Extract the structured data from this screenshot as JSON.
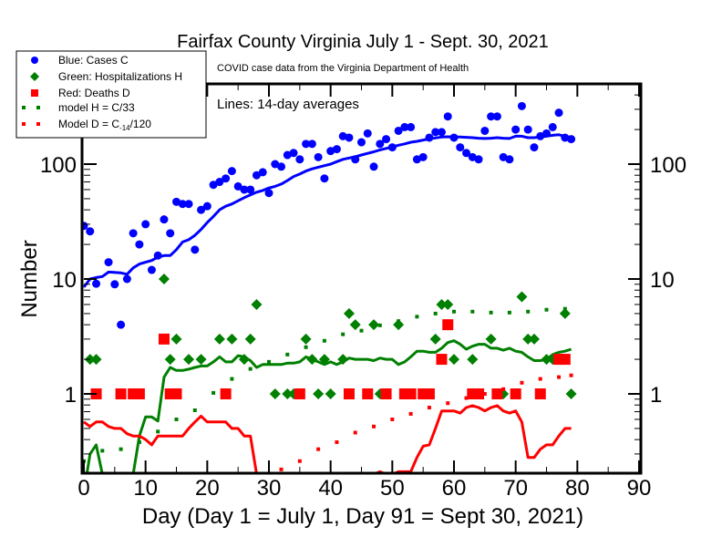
{
  "chart_data": {
    "type": "scatter",
    "title": "Fairfax County Virginia July 1 - Sept. 30, 2021",
    "subtitle": "COVID case data from the Virginia Department of Health",
    "annotation": "Lines: 14-day averages",
    "xlabel": "Day (Day 1 = July 1, Day 91 = Sept 30, 2021)",
    "ylabel": "Number",
    "xlim": [
      0,
      90
    ],
    "ylim": [
      0.2,
      500
    ],
    "yscale": "log",
    "x_ticks": [
      0,
      10,
      20,
      30,
      40,
      50,
      60,
      70,
      80,
      90
    ],
    "y_ticks": [
      1,
      10,
      100
    ],
    "y_tick_labels": [
      "1",
      "10",
      "100"
    ],
    "grid": false,
    "legend_position": "top-left",
    "legend": [
      {
        "label": "Blue: Cases C",
        "marker": "circle",
        "color": "#0000ff"
      },
      {
        "label": "Green: Hospitalizations H",
        "marker": "diamond",
        "color": "#008000"
      },
      {
        "label": "Red: Deaths D",
        "marker": "square",
        "color": "#ff0000"
      },
      {
        "label": "model H = C/33",
        "marker": "dotted",
        "color": "#008000"
      },
      {
        "label": "Model D = C",
        "label_sub": "-14",
        "label_tail": "/120",
        "marker": "dotted",
        "color": "#ff0000"
      }
    ],
    "series": [
      {
        "name": "Cases C",
        "kind": "points",
        "marker": "circle",
        "color": "#0000ff",
        "x": [
          0,
          1,
          2,
          4,
          5,
          6,
          7,
          8,
          9,
          10,
          11,
          12,
          13,
          14,
          15,
          16,
          17,
          18,
          19,
          20,
          21,
          22,
          23,
          24,
          25,
          26,
          27,
          28,
          29,
          30,
          31,
          32,
          33,
          34,
          35,
          36,
          37,
          38,
          39,
          40,
          41,
          42,
          43,
          44,
          45,
          46,
          47,
          48,
          49,
          50,
          51,
          52,
          53,
          54,
          55,
          56,
          57,
          58,
          59,
          60,
          61,
          62,
          63,
          64,
          65,
          66,
          67,
          68,
          69,
          70,
          71,
          72,
          73,
          74,
          75,
          76,
          77,
          78,
          79
        ],
        "y": [
          29,
          26,
          9.1,
          14,
          9,
          4,
          10,
          25,
          20,
          30,
          12,
          16,
          33,
          25,
          47,
          45,
          45,
          18,
          40,
          43,
          66,
          70,
          75,
          87,
          64,
          60,
          60,
          80,
          85,
          56,
          100,
          95,
          120,
          125,
          110,
          150,
          150,
          115,
          75,
          130,
          135,
          175,
          170,
          110,
          155,
          185,
          95,
          150,
          165,
          140,
          195,
          210,
          210,
          110,
          115,
          170,
          190,
          190,
          260,
          170,
          140,
          125,
          115,
          110,
          195,
          260,
          260,
          115,
          110,
          200,
          320,
          200,
          140,
          175,
          185,
          210,
          280,
          170,
          165
        ]
      },
      {
        "name": "Cases 14-day avg",
        "kind": "line",
        "color": "#0000ff",
        "x": [
          0,
          1,
          2,
          3,
          4,
          5,
          6,
          7,
          8,
          9,
          10,
          11,
          12,
          13,
          14,
          15,
          16,
          17,
          18,
          19,
          20,
          21,
          22,
          23,
          24,
          25,
          26,
          27,
          28,
          29,
          30,
          31,
          32,
          33,
          34,
          35,
          36,
          37,
          38,
          39,
          40,
          41,
          42,
          43,
          44,
          45,
          46,
          47,
          48,
          49,
          50,
          51,
          52,
          53,
          54,
          55,
          56,
          57,
          58,
          59,
          60,
          61,
          62,
          63,
          64,
          65,
          66,
          67,
          68,
          69,
          70,
          71,
          72,
          73,
          74,
          75,
          76,
          77,
          78,
          79
        ],
        "y": [
          8.5,
          10,
          10.3,
          10.5,
          11.5,
          11.4,
          11.3,
          11,
          12.5,
          13.5,
          14,
          14.5,
          15.5,
          16,
          16,
          18,
          21,
          22,
          24,
          27,
          31,
          35,
          40,
          43,
          45,
          48,
          51,
          54,
          57,
          59,
          62,
          64,
          67,
          72,
          78,
          82,
          87,
          91,
          94,
          97,
          100,
          105,
          110,
          113,
          116,
          120,
          124,
          128,
          133,
          137,
          141,
          146,
          150,
          155,
          158,
          162,
          166,
          169,
          172,
          173,
          172,
          172,
          171,
          170,
          168,
          167,
          168,
          170,
          168,
          167,
          175,
          175,
          170,
          170,
          172,
          175,
          178,
          180,
          175,
          170
        ]
      },
      {
        "name": "Hospitalizations H",
        "kind": "points",
        "marker": "diamond",
        "color": "#008000",
        "x": [
          1,
          2,
          13,
          14,
          15,
          17,
          19,
          22,
          24,
          26,
          27,
          28,
          31,
          33,
          34,
          36,
          37,
          38,
          39,
          40,
          42,
          43,
          44,
          46,
          47,
          48,
          49,
          51,
          52,
          55,
          57,
          58,
          59,
          60,
          63,
          64,
          66,
          68,
          70,
          71,
          72,
          73,
          75,
          76,
          78,
          79
        ],
        "y": [
          2,
          2,
          10,
          2,
          3,
          2,
          2,
          3,
          3,
          2,
          3,
          6,
          1,
          1,
          1,
          3,
          2,
          1,
          2,
          1,
          2,
          5,
          4,
          1,
          4,
          1,
          1,
          4,
          1,
          1,
          3,
          6,
          6,
          2,
          2,
          1,
          3,
          1,
          1,
          7,
          3,
          3,
          2,
          2,
          5,
          1
        ]
      },
      {
        "name": "Hospitalizations 14-day avg",
        "kind": "line",
        "color": "#008000",
        "x": [
          0,
          1,
          2,
          3,
          4,
          5,
          6,
          7,
          8,
          9,
          10,
          11,
          12,
          13,
          14,
          15,
          16,
          17,
          18,
          19,
          20,
          21,
          22,
          23,
          24,
          25,
          26,
          27,
          28,
          29,
          30,
          31,
          32,
          33,
          34,
          35,
          36,
          37,
          38,
          39,
          40,
          41,
          42,
          43,
          44,
          45,
          46,
          47,
          48,
          49,
          50,
          51,
          52,
          53,
          54,
          55,
          56,
          57,
          58,
          59,
          60,
          61,
          62,
          63,
          64,
          65,
          66,
          67,
          68,
          69,
          70,
          71,
          72,
          73,
          74,
          75,
          76,
          77,
          78,
          79
        ],
        "y": [
          0.14,
          0.3,
          0.36,
          0.2,
          0.1,
          0.1,
          0.1,
          0.1,
          0.2,
          0.43,
          0.63,
          0.63,
          0.58,
          1.4,
          1.7,
          1.6,
          1.6,
          1.64,
          1.7,
          1.75,
          1.75,
          1.9,
          2.1,
          1.9,
          1.9,
          2.15,
          2.1,
          1.95,
          1.7,
          1.8,
          1.8,
          1.8,
          1.8,
          1.85,
          1.85,
          1.9,
          2.1,
          2.0,
          1.9,
          1.8,
          1.9,
          1.8,
          1.9,
          2.05,
          2.0,
          2.0,
          2.0,
          1.95,
          2.05,
          2.0,
          2.0,
          1.8,
          1.9,
          2.1,
          2.35,
          2.35,
          2.3,
          2.3,
          2.5,
          2.8,
          2.9,
          2.7,
          2.45,
          2.6,
          2.7,
          2.7,
          2.5,
          2.5,
          2.4,
          2.5,
          2.35,
          2.3,
          2.1,
          1.95,
          1.95,
          2.0,
          2.2,
          2.3,
          2.35,
          2.45
        ]
      },
      {
        "name": "model H = C/33",
        "kind": "dotted",
        "color": "#008000",
        "x": [
          0,
          3,
          6,
          9,
          12,
          15,
          18,
          21,
          24,
          27,
          30,
          33,
          36,
          39,
          42,
          45,
          48,
          51,
          54,
          57,
          60,
          63,
          66,
          69,
          72,
          75,
          78
        ],
        "y": [
          0.26,
          0.32,
          0.33,
          0.38,
          0.47,
          0.6,
          0.72,
          1.02,
          1.35,
          1.65,
          1.9,
          2.2,
          2.55,
          2.9,
          3.3,
          3.55,
          3.95,
          4.3,
          4.7,
          5.0,
          5.2,
          5.2,
          5.1,
          5.1,
          5.2,
          5.4,
          5.5
        ]
      },
      {
        "name": "Deaths D",
        "kind": "points",
        "marker": "square",
        "color": "#ff0000",
        "x": [
          2,
          6,
          8,
          9,
          13,
          14,
          15,
          23,
          35,
          43,
          46,
          49,
          52,
          53,
          55,
          56,
          58,
          59,
          63,
          64,
          67,
          70,
          74,
          77,
          78
        ],
        "y": [
          1,
          1,
          1,
          1,
          3,
          1,
          1,
          1,
          1,
          1,
          1,
          1,
          1,
          1,
          1,
          1,
          2,
          4,
          1,
          1,
          1,
          1,
          1,
          2,
          2
        ]
      },
      {
        "name": "Deaths 14-day avg",
        "kind": "line",
        "color": "#ff0000",
        "x": [
          0,
          1,
          2,
          3,
          4,
          5,
          6,
          7,
          8,
          9,
          10,
          11,
          12,
          13,
          14,
          15,
          16,
          17,
          18,
          19,
          20,
          21,
          22,
          23,
          24,
          25,
          26,
          27,
          28,
          47,
          48,
          49,
          50,
          51,
          52,
          53,
          54,
          55,
          56,
          57,
          58,
          59,
          60,
          61,
          62,
          63,
          64,
          65,
          66,
          67,
          68,
          69,
          70,
          71,
          72,
          73,
          74,
          75,
          76,
          77,
          78,
          79
        ],
        "y": [
          0.57,
          0.52,
          0.57,
          0.57,
          0.52,
          0.5,
          0.5,
          0.45,
          0.43,
          0.43,
          0.4,
          0.36,
          0.43,
          0.43,
          0.43,
          0.43,
          0.43,
          0.5,
          0.57,
          0.64,
          0.57,
          0.57,
          0.57,
          0.57,
          0.5,
          0.5,
          0.43,
          0.43,
          0.2,
          0.2,
          0.21,
          0.2,
          0.2,
          0.21,
          0.21,
          0.21,
          0.28,
          0.35,
          0.36,
          0.5,
          0.71,
          0.71,
          0.71,
          0.68,
          0.76,
          0.79,
          0.76,
          0.71,
          0.76,
          0.79,
          0.71,
          0.68,
          0.71,
          0.57,
          0.28,
          0.28,
          0.33,
          0.36,
          0.36,
          0.43,
          0.5,
          0.5
        ]
      },
      {
        "name": "Model D = C-14/120",
        "kind": "dotted",
        "color": "#ff0000",
        "x": [
          30,
          32,
          35,
          38,
          41,
          44,
          47,
          50,
          53,
          56,
          59,
          62,
          65,
          68,
          71,
          74,
          77,
          79
        ],
        "y": [
          0.2,
          0.22,
          0.26,
          0.33,
          0.38,
          0.46,
          0.52,
          0.6,
          0.67,
          0.76,
          0.83,
          0.92,
          1.0,
          1.1,
          1.25,
          1.35,
          1.4,
          1.45
        ]
      }
    ]
  }
}
